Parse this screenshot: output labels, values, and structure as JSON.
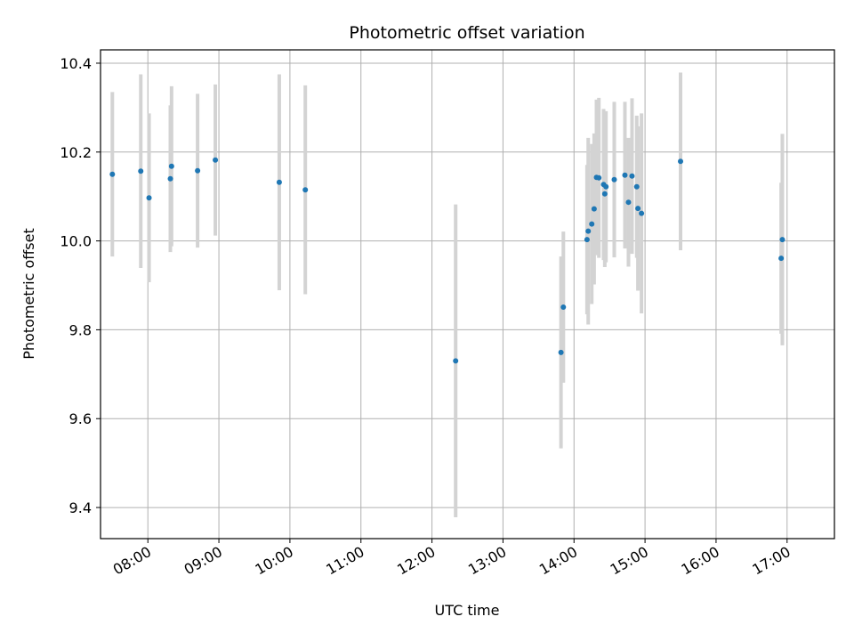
{
  "chart_data": {
    "type": "scatter",
    "title": "Photometric offset variation",
    "xlabel": "UTC time",
    "ylabel": "Photometric offset",
    "x_ticks": [
      "08:00",
      "09:00",
      "10:00",
      "11:00",
      "12:00",
      "13:00",
      "14:00",
      "15:00",
      "16:00",
      "17:00"
    ],
    "y_ticks": [
      "9.4",
      "9.6",
      "9.8",
      "10.0",
      "10.2",
      "10.4"
    ],
    "xlim": [
      "07:20",
      "17:40"
    ],
    "ylim": [
      9.33,
      10.43
    ],
    "grid": true,
    "marker_color": "#1f77b4",
    "errorbar_color": "#d3d3d3",
    "points": [
      {
        "time": "07:30",
        "y": 10.15,
        "err": 0.185
      },
      {
        "time": "07:54",
        "y": 10.157,
        "err": 0.218
      },
      {
        "time": "08:01",
        "y": 10.097,
        "err": 0.19
      },
      {
        "time": "08:19",
        "y": 10.14,
        "err": 0.165
      },
      {
        "time": "08:20",
        "y": 10.168,
        "err": 0.18
      },
      {
        "time": "08:42",
        "y": 10.158,
        "err": 0.173
      },
      {
        "time": "08:57",
        "y": 10.182,
        "err": 0.17
      },
      {
        "time": "09:51",
        "y": 10.132,
        "err": 0.243
      },
      {
        "time": "10:13",
        "y": 10.115,
        "err": 0.235
      },
      {
        "time": "12:20",
        "y": 9.73,
        "err": 0.352
      },
      {
        "time": "13:49",
        "y": 9.749,
        "err": 0.216
      },
      {
        "time": "13:51",
        "y": 9.851,
        "err": 0.17
      },
      {
        "time": "14:11",
        "y": 10.003,
        "err": 0.168
      },
      {
        "time": "14:12",
        "y": 10.022,
        "err": 0.21
      },
      {
        "time": "14:15",
        "y": 10.038,
        "err": 0.18
      },
      {
        "time": "14:17",
        "y": 10.072,
        "err": 0.17
      },
      {
        "time": "14:19",
        "y": 10.143,
        "err": 0.175
      },
      {
        "time": "14:21",
        "y": 10.142,
        "err": 0.18
      },
      {
        "time": "14:25",
        "y": 10.127,
        "err": 0.17
      },
      {
        "time": "14:26",
        "y": 10.106,
        "err": 0.165
      },
      {
        "time": "14:27",
        "y": 10.122,
        "err": 0.17
      },
      {
        "time": "14:34",
        "y": 10.138,
        "err": 0.175
      },
      {
        "time": "14:43",
        "y": 10.148,
        "err": 0.165
      },
      {
        "time": "14:46",
        "y": 10.087,
        "err": 0.145
      },
      {
        "time": "14:49",
        "y": 10.146,
        "err": 0.175
      },
      {
        "time": "14:53",
        "y": 10.122,
        "err": 0.16
      },
      {
        "time": "14:54",
        "y": 10.073,
        "err": 0.185
      },
      {
        "time": "14:57",
        "y": 10.062,
        "err": 0.225
      },
      {
        "time": "15:30",
        "y": 10.179,
        "err": 0.2
      },
      {
        "time": "16:55",
        "y": 9.961,
        "err": 0.17
      },
      {
        "time": "16:56",
        "y": 10.003,
        "err": 0.238
      }
    ]
  }
}
